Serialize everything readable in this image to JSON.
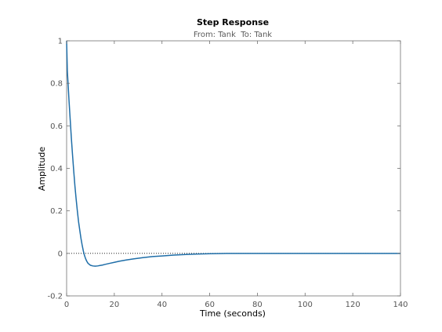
{
  "colors": {
    "series": "#1f6ea8",
    "axis": "#707070",
    "ticklabel": "#555555",
    "zero_line": "#000000"
  },
  "chart_data": {
    "type": "line",
    "title": "Step Response",
    "subtitle": "From: Tank  To: Tank",
    "xlabel": "Time (seconds)",
    "ylabel": "Amplitude",
    "xlim": [
      0,
      140
    ],
    "ylim": [
      -0.2,
      1
    ],
    "xticks": [
      0,
      20,
      40,
      60,
      80,
      100,
      120,
      140
    ],
    "yticks": [
      -0.2,
      0,
      0.2,
      0.4,
      0.6,
      0.8,
      1
    ],
    "grid": false,
    "legend": "none",
    "zero_reference_line": true,
    "series": [
      {
        "x": [
          0,
          0.3,
          0.6,
          1,
          1.5,
          2,
          2.5,
          3,
          3.5,
          4,
          4.5,
          5,
          5.5,
          6,
          6.5,
          7,
          7.5,
          8,
          8.5,
          9,
          10,
          11,
          12,
          13,
          14,
          15,
          16,
          18,
          20,
          22,
          25,
          28,
          32,
          36,
          40,
          45,
          50,
          55,
          60,
          65,
          67,
          70,
          80,
          90,
          100,
          110,
          120,
          130,
          140
        ],
        "y": [
          1.0,
          0.86,
          0.8,
          0.72,
          0.63,
          0.54,
          0.46,
          0.385,
          0.315,
          0.255,
          0.2,
          0.15,
          0.11,
          0.072,
          0.04,
          0.012,
          -0.01,
          -0.026,
          -0.038,
          -0.047,
          -0.056,
          -0.059,
          -0.06,
          -0.059,
          -0.057,
          -0.055,
          -0.052,
          -0.047,
          -0.042,
          -0.037,
          -0.031,
          -0.026,
          -0.02,
          -0.015,
          -0.012,
          -0.008,
          -0.005,
          -0.003,
          -0.0015,
          -0.0005,
          0,
          0,
          0,
          0,
          0,
          0,
          0,
          0,
          0
        ]
      }
    ]
  }
}
